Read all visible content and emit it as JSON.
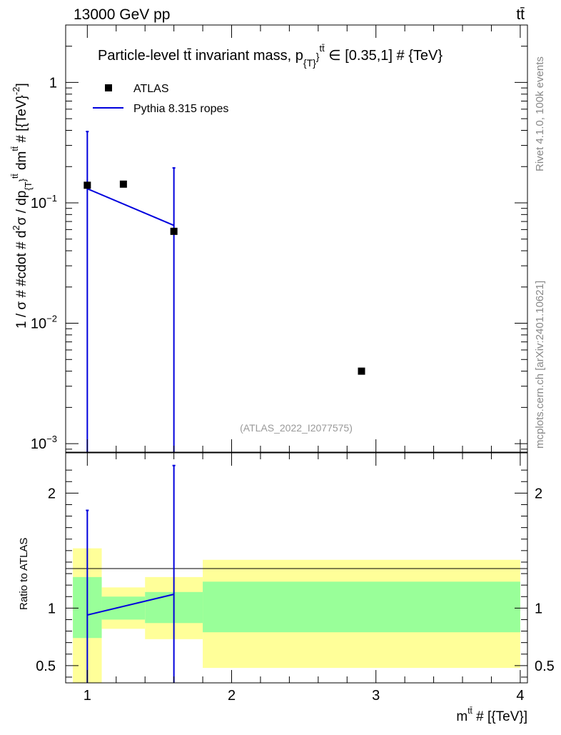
{
  "header": {
    "energy_label": "13000 GeV pp",
    "process_label": "tt̄"
  },
  "side": {
    "rivet_label": "Rivet 4.1.0,  100k events",
    "mcplots_label": "mcplots.cern.ch [arXiv:2401.10621]"
  },
  "colors": {
    "data": "#000000",
    "mc": "#0000dd",
    "band_inner": "#99ff99",
    "band_outer": "#ffff99"
  },
  "chart_data": [
    {
      "type": "scatter",
      "panel": "main",
      "title": "Particle-level tt̄ invariant mass, p_{T}^{tt̄} ∈ [0.35,1] # {TeV}",
      "title_parts": {
        "pre": "Particle-level tt̄ invariant mass, p",
        "sub": "{T}",
        "sup": "}",
        "sup2": "tt̄",
        "post": " ∈ [0.35,1] # {TeV}"
      },
      "ylabel": "1 / σ # #cdot # d²σ / dp_{T}^{tt̄} dm^{tt̄} # [{TeV}^{-2}]",
      "ylabel_parts": {
        "a": "1 / σ # #cdot # d",
        "a_sup": "2",
        "b": "σ / dp",
        "b_sub": "{T",
        "b_sup": "}",
        "b_sup2": "tt̄",
        "c": " dm",
        "c_sup": "tt̄",
        "d": " # [{TeV}",
        "d_sup": "-2",
        "e": "]"
      },
      "yscale": "log",
      "ylim": [
        0.00085,
        3.0
      ],
      "xlim": [
        0.85,
        4.05
      ],
      "y_tick_labels": [
        {
          "value": 1,
          "base": "1",
          "exp": ""
        },
        {
          "value": 0.1,
          "base": "10",
          "exp": "−1"
        },
        {
          "value": 0.01,
          "base": "10",
          "exp": "−2"
        },
        {
          "value": 0.001,
          "base": "10",
          "exp": "−3"
        }
      ],
      "watermark": "(ATLAS_2022_I2077575)",
      "legend": {
        "position": "top-left",
        "entries": [
          {
            "label": "ATLAS",
            "style": "marker"
          },
          {
            "label": "Pythia 8.315 ropes",
            "style": "line"
          }
        ]
      },
      "series": [
        {
          "name": "ATLAS",
          "style": "marker",
          "x": [
            1.0,
            1.25,
            1.6,
            2.9
          ],
          "y": [
            0.14,
            0.143,
            0.058,
            0.004
          ]
        },
        {
          "name": "Pythia 8.315 ropes",
          "style": "line",
          "x": [
            1.0,
            1.6
          ],
          "y": [
            0.131,
            0.065
          ],
          "yerr_low": [
            0.0001,
            0.0001
          ],
          "yerr_high": [
            0.26,
            0.13
          ]
        }
      ]
    },
    {
      "type": "area",
      "panel": "ratio",
      "ylabel": "Ratio to ATLAS",
      "xlabel": "m^{tt̄} # [{TeV}]",
      "xlabel_parts": {
        "pre": "m",
        "sup": "tt̄",
        "post": " # [{TeV}]"
      },
      "xlim": [
        0.85,
        4.05
      ],
      "ylim": [
        0.35,
        2.35
      ],
      "x_tick_labels": [
        1,
        2,
        3,
        4
      ],
      "y_tick_labels": [
        0.5,
        1,
        2
      ],
      "bands": [
        {
          "x_low": 0.9,
          "x_high": 1.1,
          "inner": [
            0.74,
            1.27
          ],
          "outer": [
            0.3,
            1.52
          ]
        },
        {
          "x_low": 1.1,
          "x_high": 1.4,
          "inner": [
            0.9,
            1.1
          ],
          "outer": [
            0.82,
            1.18
          ]
        },
        {
          "x_low": 1.4,
          "x_high": 1.8,
          "inner": [
            0.87,
            1.14
          ],
          "outer": [
            0.73,
            1.27
          ]
        },
        {
          "x_low": 1.8,
          "x_high": 4.0,
          "inner": [
            0.79,
            1.23
          ],
          "outer": [
            0.48,
            1.42
          ]
        }
      ],
      "series": [
        {
          "name": "Pythia 8.315 ropes",
          "x": [
            1.0,
            1.6
          ],
          "y": [
            0.94,
            1.12
          ],
          "yerr_low": [
            0.94,
            1.12
          ],
          "yerr_high": [
            1.85,
            2.24
          ]
        }
      ]
    }
  ]
}
